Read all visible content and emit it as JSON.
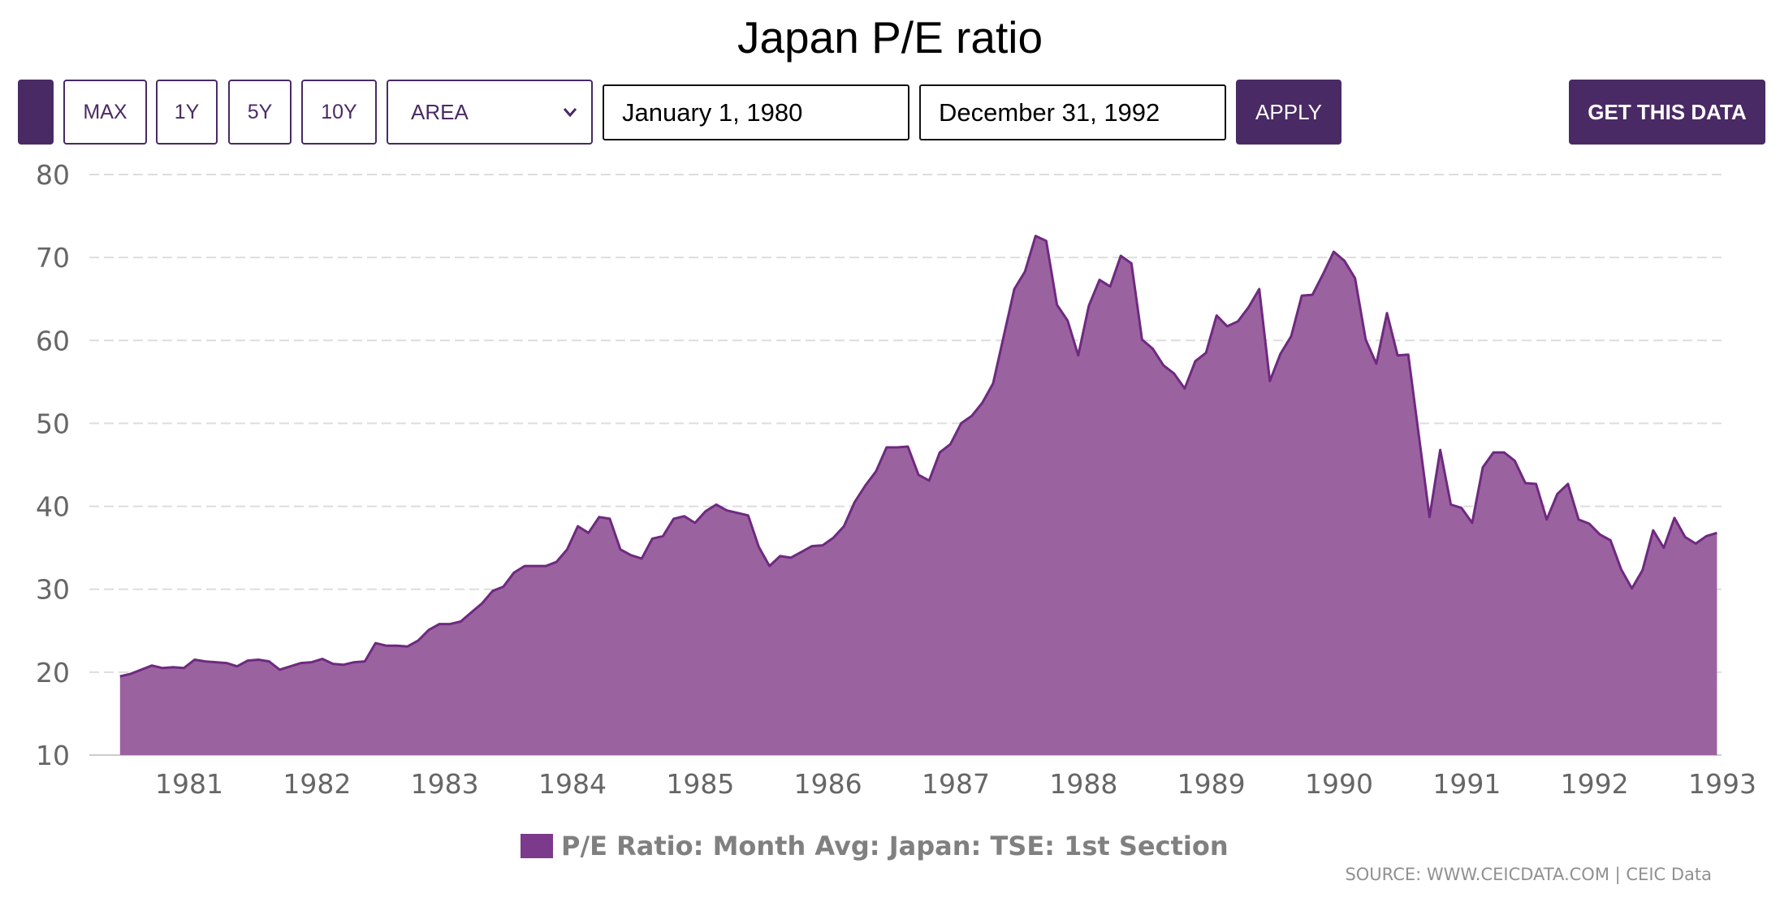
{
  "page": {
    "title": "Japan P/E ratio"
  },
  "toolbar": {
    "max_label": "MAX",
    "y1_label": "1Y",
    "y5_label": "5Y",
    "y10_label": "10Y",
    "chart_type_selected": "AREA",
    "start_date": "January 1, 1980",
    "end_date": "December 31, 1992",
    "apply_label": "APPLY",
    "get_data_label": "GET THIS DATA"
  },
  "source_text": "SOURCE: WWW.CEICDATA.COM | CEIC Data",
  "colors": {
    "accent": "#4a2a64",
    "area_fill": "#9b62a0",
    "area_line": "#6e2a7f",
    "legend": "#7b3a8b"
  },
  "chart_data": {
    "type": "area",
    "title": "Japan P/E ratio",
    "xlabel": "",
    "ylabel": "",
    "ylim": [
      10,
      80
    ],
    "xlim": [
      1980.4,
      1993.0
    ],
    "y_ticks": [
      10,
      20,
      30,
      40,
      50,
      60,
      70,
      80
    ],
    "x_ticks": [
      "1981",
      "1982",
      "1983",
      "1984",
      "1985",
      "1986",
      "1987",
      "1988",
      "1989",
      "1990",
      "1991",
      "1992",
      "1993"
    ],
    "grid": true,
    "legend_position": "bottom-center",
    "series": [
      {
        "name": "P/E Ratio: Month Avg: Japan: TSE: 1st Section",
        "x": [
          "1980-06",
          "1980-07",
          "1980-08",
          "1980-09",
          "1980-10",
          "1980-11",
          "1980-12",
          "1981-01",
          "1981-02",
          "1981-03",
          "1981-04",
          "1981-05",
          "1981-06",
          "1981-07",
          "1981-08",
          "1981-09",
          "1981-10",
          "1981-11",
          "1981-12",
          "1982-01",
          "1982-02",
          "1982-03",
          "1982-04",
          "1982-05",
          "1982-06",
          "1982-07",
          "1982-08",
          "1982-09",
          "1982-10",
          "1982-11",
          "1982-12",
          "1983-01",
          "1983-02",
          "1983-03",
          "1983-04",
          "1983-05",
          "1983-06",
          "1983-07",
          "1983-08",
          "1983-09",
          "1983-10",
          "1983-11",
          "1983-12",
          "1984-01",
          "1984-02",
          "1984-03",
          "1984-04",
          "1984-05",
          "1984-06",
          "1984-07",
          "1984-08",
          "1984-09",
          "1984-10",
          "1984-11",
          "1984-12",
          "1985-01",
          "1985-02",
          "1985-03",
          "1985-04",
          "1985-05",
          "1985-06",
          "1985-07",
          "1985-08",
          "1985-09",
          "1985-10",
          "1985-11",
          "1985-12",
          "1986-01",
          "1986-02",
          "1986-03",
          "1986-04",
          "1986-05",
          "1986-06",
          "1986-07",
          "1986-08",
          "1986-09",
          "1986-10",
          "1986-11",
          "1986-12",
          "1987-01",
          "1987-02",
          "1987-03",
          "1987-04",
          "1987-05",
          "1987-06",
          "1987-07",
          "1987-08",
          "1987-09",
          "1987-10",
          "1987-11",
          "1987-12",
          "1988-01",
          "1988-02",
          "1988-03",
          "1988-04",
          "1988-05",
          "1988-06",
          "1988-07",
          "1988-08",
          "1988-09",
          "1988-10",
          "1988-11",
          "1988-12",
          "1989-01",
          "1989-02",
          "1989-03",
          "1989-04",
          "1989-05",
          "1989-06",
          "1989-07",
          "1989-08",
          "1989-09",
          "1989-10",
          "1989-11",
          "1989-12",
          "1990-01",
          "1990-02",
          "1990-03",
          "1990-04",
          "1990-05",
          "1990-06",
          "1990-07",
          "1990-08",
          "1990-09",
          "1990-10",
          "1990-11",
          "1990-12",
          "1991-01",
          "1991-02",
          "1991-03",
          "1991-04",
          "1991-05",
          "1991-06",
          "1991-07",
          "1991-08",
          "1991-09",
          "1991-10",
          "1991-11",
          "1991-12",
          "1992-01",
          "1992-02",
          "1992-03",
          "1992-04",
          "1992-05",
          "1992-06",
          "1992-07",
          "1992-08",
          "1992-09",
          "1992-10",
          "1992-11",
          "1992-12"
        ],
        "y": [
          19.5,
          19.8,
          20.3,
          20.8,
          20.5,
          20.6,
          20.5,
          21.5,
          21.3,
          21.2,
          21.1,
          20.7,
          21.4,
          21.5,
          21.3,
          20.3,
          20.7,
          21.1,
          21.2,
          21.6,
          21.0,
          20.9,
          21.2,
          21.3,
          23.5,
          23.2,
          23.2,
          23.1,
          23.8,
          25.1,
          25.8,
          25.8,
          26.1,
          27.2,
          28.3,
          29.8,
          30.3,
          32.0,
          32.8,
          32.8,
          32.8,
          33.3,
          34.8,
          37.6,
          36.8,
          38.7,
          38.5,
          34.8,
          34.1,
          33.7,
          36.1,
          36.4,
          38.5,
          38.8,
          38.0,
          39.4,
          40.2,
          39.5,
          39.2,
          38.9,
          35.1,
          32.8,
          34.0,
          33.8,
          34.5,
          35.2,
          35.3,
          36.2,
          37.6,
          40.5,
          42.5,
          44.2,
          47.1,
          47.1,
          47.2,
          43.8,
          43.1,
          46.5,
          47.5,
          50.0,
          50.9,
          52.5,
          54.8,
          60.5,
          66.2,
          68.3,
          72.6,
          72.0,
          64.3,
          62.4,
          58.2,
          64.2,
          67.3,
          66.5,
          70.2,
          69.3,
          60.1,
          59.0,
          57.0,
          56.0,
          54.2,
          57.5,
          58.5,
          63.0,
          61.7,
          62.3,
          64.0,
          66.2,
          55.1,
          58.4,
          60.5,
          65.4,
          65.5,
          68.0,
          70.7,
          69.6,
          67.5,
          60.1,
          57.2,
          63.3,
          58.2,
          58.3,
          48.5,
          38.7,
          46.8,
          40.2,
          39.8,
          38.0,
          44.7,
          46.5,
          46.5,
          45.5,
          42.8,
          42.7,
          38.4,
          41.5,
          42.7,
          38.4,
          37.9,
          36.6,
          35.9,
          32.4,
          30.1,
          32.3,
          37.1,
          35.0,
          38.6,
          36.3,
          35.5,
          36.4,
          36.8
        ]
      }
    ]
  }
}
